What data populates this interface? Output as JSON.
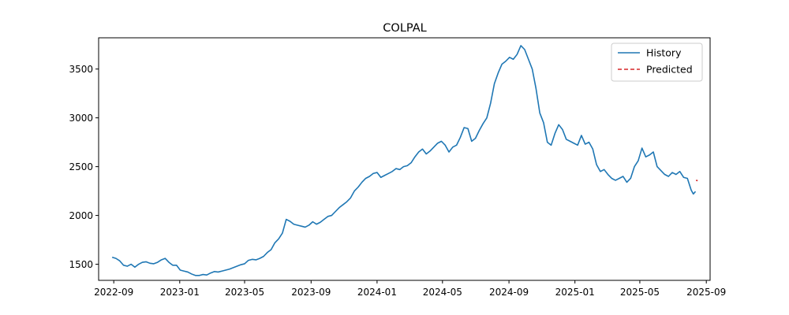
{
  "chart_data": {
    "type": "line",
    "title": "COLPAL",
    "xlabel": "",
    "ylabel": "",
    "x_range": [
      "2022-08-04",
      "2025-09-08"
    ],
    "ylim": [
      1335,
      3820
    ],
    "x_ticks": [
      {
        "date": "2022-09-01",
        "label": "2022-09"
      },
      {
        "date": "2023-01-01",
        "label": "2023-01"
      },
      {
        "date": "2023-05-01",
        "label": "2023-05"
      },
      {
        "date": "2023-09-01",
        "label": "2023-09"
      },
      {
        "date": "2024-01-01",
        "label": "2024-01"
      },
      {
        "date": "2024-05-01",
        "label": "2024-05"
      },
      {
        "date": "2024-09-01",
        "label": "2024-09"
      },
      {
        "date": "2025-01-01",
        "label": "2025-01"
      },
      {
        "date": "2025-05-01",
        "label": "2025-05"
      },
      {
        "date": "2025-09-01",
        "label": "2025-09"
      }
    ],
    "y_ticks": [
      1500,
      2000,
      2500,
      3000,
      3500
    ],
    "grid": false,
    "legend_position": "top-right",
    "series": [
      {
        "name": "History",
        "color": "#1f77b4",
        "style": "solid",
        "points": [
          [
            "2022-08-29",
            1572
          ],
          [
            "2022-09-05",
            1560
          ],
          [
            "2022-09-12",
            1535
          ],
          [
            "2022-09-19",
            1490
          ],
          [
            "2022-09-26",
            1480
          ],
          [
            "2022-10-03",
            1500
          ],
          [
            "2022-10-10",
            1470
          ],
          [
            "2022-10-17",
            1500
          ],
          [
            "2022-10-24",
            1520
          ],
          [
            "2022-10-31",
            1525
          ],
          [
            "2022-11-07",
            1510
          ],
          [
            "2022-11-14",
            1505
          ],
          [
            "2022-11-21",
            1520
          ],
          [
            "2022-11-28",
            1545
          ],
          [
            "2022-12-05",
            1560
          ],
          [
            "2022-12-12",
            1520
          ],
          [
            "2022-12-19",
            1490
          ],
          [
            "2022-12-26",
            1490
          ],
          [
            "2023-01-02",
            1440
          ],
          [
            "2023-01-09",
            1430
          ],
          [
            "2023-01-16",
            1420
          ],
          [
            "2023-01-23",
            1400
          ],
          [
            "2023-01-30",
            1385
          ],
          [
            "2023-02-06",
            1385
          ],
          [
            "2023-02-13",
            1395
          ],
          [
            "2023-02-20",
            1390
          ],
          [
            "2023-02-27",
            1410
          ],
          [
            "2023-03-06",
            1425
          ],
          [
            "2023-03-13",
            1420
          ],
          [
            "2023-03-20",
            1430
          ],
          [
            "2023-03-27",
            1440
          ],
          [
            "2023-04-03",
            1450
          ],
          [
            "2023-04-10",
            1465
          ],
          [
            "2023-04-17",
            1480
          ],
          [
            "2023-04-24",
            1495
          ],
          [
            "2023-05-01",
            1505
          ],
          [
            "2023-05-08",
            1540
          ],
          [
            "2023-05-15",
            1550
          ],
          [
            "2023-05-22",
            1545
          ],
          [
            "2023-05-29",
            1560
          ],
          [
            "2023-06-05",
            1580
          ],
          [
            "2023-06-12",
            1620
          ],
          [
            "2023-06-19",
            1650
          ],
          [
            "2023-06-26",
            1720
          ],
          [
            "2023-07-03",
            1760
          ],
          [
            "2023-07-10",
            1820
          ],
          [
            "2023-07-17",
            1960
          ],
          [
            "2023-07-24",
            1940
          ],
          [
            "2023-07-31",
            1910
          ],
          [
            "2023-08-07",
            1900
          ],
          [
            "2023-08-14",
            1890
          ],
          [
            "2023-08-21",
            1880
          ],
          [
            "2023-08-28",
            1900
          ],
          [
            "2023-09-04",
            1935
          ],
          [
            "2023-09-11",
            1910
          ],
          [
            "2023-09-18",
            1930
          ],
          [
            "2023-09-25",
            1960
          ],
          [
            "2023-10-02",
            1990
          ],
          [
            "2023-10-09",
            2000
          ],
          [
            "2023-10-16",
            2040
          ],
          [
            "2023-10-23",
            2080
          ],
          [
            "2023-10-30",
            2110
          ],
          [
            "2023-11-06",
            2140
          ],
          [
            "2023-11-13",
            2180
          ],
          [
            "2023-11-20",
            2250
          ],
          [
            "2023-11-27",
            2290
          ],
          [
            "2023-12-04",
            2340
          ],
          [
            "2023-12-11",
            2380
          ],
          [
            "2023-12-18",
            2400
          ],
          [
            "2023-12-25",
            2430
          ],
          [
            "2024-01-01",
            2440
          ],
          [
            "2024-01-08",
            2390
          ],
          [
            "2024-01-15",
            2410
          ],
          [
            "2024-01-22",
            2430
          ],
          [
            "2024-01-29",
            2450
          ],
          [
            "2024-02-05",
            2480
          ],
          [
            "2024-02-12",
            2470
          ],
          [
            "2024-02-19",
            2500
          ],
          [
            "2024-02-26",
            2510
          ],
          [
            "2024-03-04",
            2540
          ],
          [
            "2024-03-11",
            2600
          ],
          [
            "2024-03-18",
            2650
          ],
          [
            "2024-03-25",
            2680
          ],
          [
            "2024-04-01",
            2630
          ],
          [
            "2024-04-08",
            2660
          ],
          [
            "2024-04-15",
            2700
          ],
          [
            "2024-04-22",
            2740
          ],
          [
            "2024-04-29",
            2760
          ],
          [
            "2024-05-06",
            2720
          ],
          [
            "2024-05-13",
            2650
          ],
          [
            "2024-05-20",
            2700
          ],
          [
            "2024-05-27",
            2720
          ],
          [
            "2024-06-03",
            2800
          ],
          [
            "2024-06-10",
            2900
          ],
          [
            "2024-06-17",
            2890
          ],
          [
            "2024-06-24",
            2760
          ],
          [
            "2024-07-01",
            2790
          ],
          [
            "2024-07-08",
            2870
          ],
          [
            "2024-07-15",
            2940
          ],
          [
            "2024-07-22",
            3000
          ],
          [
            "2024-07-29",
            3150
          ],
          [
            "2024-08-05",
            3350
          ],
          [
            "2024-08-12",
            3460
          ],
          [
            "2024-08-19",
            3550
          ],
          [
            "2024-08-26",
            3580
          ],
          [
            "2024-09-02",
            3620
          ],
          [
            "2024-09-09",
            3600
          ],
          [
            "2024-09-16",
            3650
          ],
          [
            "2024-09-23",
            3740
          ],
          [
            "2024-09-30",
            3700
          ],
          [
            "2024-10-07",
            3600
          ],
          [
            "2024-10-14",
            3500
          ],
          [
            "2024-10-21",
            3300
          ],
          [
            "2024-10-28",
            3050
          ],
          [
            "2024-11-04",
            2950
          ],
          [
            "2024-11-11",
            2750
          ],
          [
            "2024-11-18",
            2720
          ],
          [
            "2024-11-25",
            2840
          ],
          [
            "2024-12-02",
            2930
          ],
          [
            "2024-12-09",
            2880
          ],
          [
            "2024-12-16",
            2780
          ],
          [
            "2024-12-23",
            2760
          ],
          [
            "2024-12-30",
            2740
          ],
          [
            "2025-01-06",
            2720
          ],
          [
            "2025-01-13",
            2820
          ],
          [
            "2025-01-20",
            2730
          ],
          [
            "2025-01-27",
            2750
          ],
          [
            "2025-02-03",
            2680
          ],
          [
            "2025-02-10",
            2520
          ],
          [
            "2025-02-17",
            2450
          ],
          [
            "2025-02-24",
            2470
          ],
          [
            "2025-03-03",
            2420
          ],
          [
            "2025-03-10",
            2380
          ],
          [
            "2025-03-17",
            2360
          ],
          [
            "2025-03-24",
            2380
          ],
          [
            "2025-03-31",
            2400
          ],
          [
            "2025-04-07",
            2340
          ],
          [
            "2025-04-14",
            2380
          ],
          [
            "2025-04-21",
            2500
          ],
          [
            "2025-04-28",
            2560
          ],
          [
            "2025-05-05",
            2690
          ],
          [
            "2025-05-12",
            2600
          ],
          [
            "2025-05-19",
            2620
          ],
          [
            "2025-05-26",
            2650
          ],
          [
            "2025-06-02",
            2500
          ],
          [
            "2025-06-09",
            2460
          ],
          [
            "2025-06-16",
            2420
          ],
          [
            "2025-06-23",
            2400
          ],
          [
            "2025-06-30",
            2440
          ],
          [
            "2025-07-07",
            2420
          ],
          [
            "2025-07-14",
            2450
          ],
          [
            "2025-07-21",
            2390
          ],
          [
            "2025-07-28",
            2380
          ],
          [
            "2025-08-04",
            2260
          ],
          [
            "2025-08-08",
            2220
          ],
          [
            "2025-08-12",
            2245
          ]
        ]
      },
      {
        "name": "Predicted",
        "color": "#d62728",
        "style": "dashed",
        "points": [
          [
            "2025-08-13",
            2360
          ],
          [
            "2025-08-16",
            2356
          ]
        ]
      }
    ]
  }
}
